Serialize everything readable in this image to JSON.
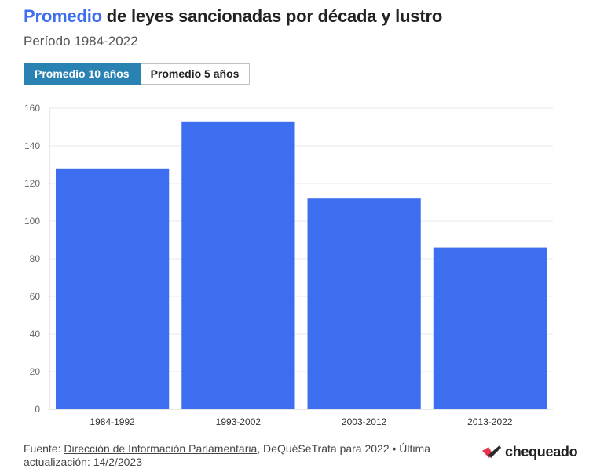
{
  "header": {
    "title_highlight": "Promedio",
    "title_rest": " de leyes sancionadas por década y lustro",
    "subtitle": "Período 1984-2022"
  },
  "tabs": [
    {
      "label": "Promedio 10 años",
      "active": true
    },
    {
      "label": "Promedio 5 años",
      "active": false
    }
  ],
  "footer": {
    "source_prefix": "Fuente: ",
    "source_link": "Dirección de Información Parlamentaria",
    "source_rest": ", DeQuéSeTrata para 2022 • Última actualización: 14/2/2023"
  },
  "brand": {
    "name": "chequeado",
    "logo_icon": "chequeado-logo-icon",
    "logo_colors": [
      "#e8334a",
      "#2b2b2b"
    ]
  },
  "colors": {
    "bar": "#3d6ef0",
    "title_highlight": "#3d6ef0",
    "active_tab": "#2a82b3"
  },
  "chart_data": {
    "type": "bar",
    "categories": [
      "1984-1992",
      "1993-2002",
      "2003-2012",
      "2013-2022"
    ],
    "values": [
      128,
      153,
      112,
      86
    ],
    "ylim": [
      0,
      160
    ],
    "yticks": [
      0,
      20,
      40,
      60,
      80,
      100,
      120,
      140,
      160
    ],
    "grid": true
  }
}
